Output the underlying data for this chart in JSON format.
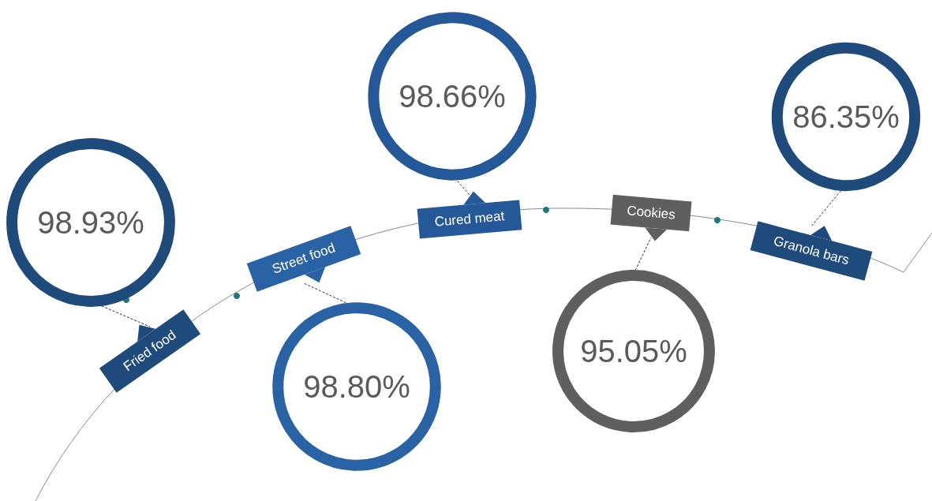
{
  "chart_data": {
    "type": "other",
    "categories": [
      "Fried food",
      "Street food",
      "Cured meat",
      "Cookies",
      "Granola bars"
    ],
    "values": [
      98.93,
      98.8,
      98.66,
      95.05,
      86.35
    ],
    "value_labels": [
      "98.93%",
      "98.80%",
      "98.66%",
      "95.05%",
      "86.35%"
    ],
    "colors": [
      "#1f4a7c",
      "#2a62a6",
      "#245899",
      "#5f5f5f",
      "#1f4a7c"
    ]
  }
}
